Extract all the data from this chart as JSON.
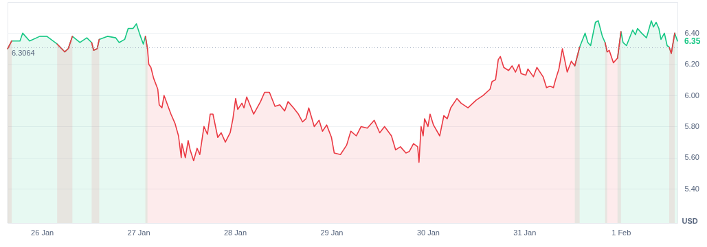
{
  "chart_data": {
    "type": "area",
    "ylabel": "USD",
    "xlim": [
      "--01-25T15:26",
      "--02-01T14:03"
    ],
    "xticks": [
      {
        "value": "--01-26",
        "label": "26 Jan"
      },
      {
        "value": "--01-27",
        "label": "27 Jan"
      },
      {
        "value": "--01-28",
        "label": "28 Jan"
      },
      {
        "value": "--01-29",
        "label": "29 Jan"
      },
      {
        "value": "--01-30",
        "label": "30 Jan"
      },
      {
        "value": "--01-31",
        "label": "31 Jan"
      },
      {
        "value": "--02-01",
        "label": "1 Feb"
      }
    ],
    "ylim": [
      5.18,
      6.6
    ],
    "yticks": [
      {
        "value": 5.4,
        "label": "5.40"
      },
      {
        "value": 5.6,
        "label": "5.60"
      },
      {
        "value": 5.8,
        "label": "5.80"
      },
      {
        "value": 6.0,
        "label": "6.00"
      },
      {
        "value": 6.2,
        "label": "6.20"
      },
      {
        "value": 6.4,
        "label": "6.40"
      }
    ],
    "grid": "y",
    "ref_lines": [
      {
        "axis": "y",
        "value": 6.3064,
        "label": "6.3064",
        "color": "#a6b0c3",
        "line_style": "dotted"
      }
    ],
    "annotations": [
      {
        "text": "6.35",
        "x": "--02-01T14:03",
        "y": 6.35
      }
    ],
    "series": [
      {
        "color": "#16c784",
        "x": [
          "--01-25T15:26",
          "--01-25T16:28",
          "--01-25T18:31",
          "--01-25T19:12",
          "--01-25T20:55",
          "--01-25T23:29",
          "--01-26T01:12",
          "--01-26T03:46",
          "--01-26T05:39",
          "--01-26T06:31",
          "--01-26T07:33",
          "--01-26T09:26",
          "--01-26T11:09",
          "--01-26T12:21",
          "--01-26T12:51",
          "--01-26T13:43",
          "--01-26T14:14",
          "--01-26T16:17",
          "--01-26T18:21",
          "--01-26T19:12",
          "--01-26T20:34",
          "--01-26T21:26",
          "--01-26T22:38",
          "--01-26T23:29",
          "--01-27T00:21",
          "--01-27T01:12",
          "--01-27T01:43",
          "--01-27T02:14"
        ],
        "values": [
          6.3,
          6.35,
          6.35,
          6.4,
          6.35,
          6.38,
          6.38,
          6.33,
          6.28,
          6.3,
          6.38,
          6.34,
          6.37,
          6.34,
          6.29,
          6.3,
          6.36,
          6.38,
          6.37,
          6.34,
          6.36,
          6.43,
          6.43,
          6.46,
          6.39,
          6.33,
          6.38,
          6.3
        ]
      },
      {
        "color": "#16c784",
        "x": [
          "--01-31T12:31",
          "--01-31T13:43",
          "--01-31T15:05",
          "--01-31T15:46",
          "--01-31T16:27",
          "--01-31T17:39",
          "--01-31T18:21",
          "--01-31T19:22",
          "--01-31T20:03",
          "--01-31T20:34"
        ],
        "values": [
          6.19,
          6.31,
          6.4,
          6.34,
          6.32,
          6.47,
          6.48,
          6.38,
          6.34,
          6.28
        ]
      },
      {
        "color": "#16c784",
        "x": [
          "--01-31T23:09",
          "--02-01T00:00",
          "--02-01T00:31",
          "--02-01T01:22",
          "--02-01T02:55",
          "--02-01T03:36",
          "--02-01T04:07",
          "--02-01T05:09",
          "--02-01T06:21",
          "--02-01T07:33",
          "--02-01T08:04",
          "--02-01T08:45",
          "--02-01T09:26",
          "--02-01T09:57",
          "--02-01T10:48",
          "--02-01T11:29",
          "--02-01T12:00",
          "--02-01T12:31",
          "--02-01T13:22",
          "--02-01T14:03"
        ],
        "values": [
          6.24,
          6.41,
          6.34,
          6.32,
          6.42,
          6.39,
          6.43,
          6.4,
          6.37,
          6.48,
          6.44,
          6.47,
          6.43,
          6.36,
          6.4,
          6.32,
          6.31,
          6.27,
          6.4,
          6.35
        ]
      },
      {
        "color": "#ea3943",
        "x": [
          "--01-25T15:26",
          "--01-25T16:28"
        ],
        "values": [
          6.3,
          6.35
        ]
      },
      {
        "color": "#ea3943",
        "x": [
          "--01-26T03:46",
          "--01-26T05:39",
          "--01-26T06:31",
          "--01-26T07:33"
        ],
        "values": [
          6.33,
          6.28,
          6.3,
          6.38
        ]
      },
      {
        "color": "#ea3943",
        "x": [
          "--01-26T12:21",
          "--01-26T12:51",
          "--01-26T13:43",
          "--01-26T14:14"
        ],
        "values": [
          6.34,
          6.29,
          6.3,
          6.36
        ]
      },
      {
        "color": "#ea3943",
        "x": [
          "--01-27T01:43",
          "--01-27T02:14",
          "--01-27T02:34",
          "--01-27T03:05",
          "--01-27T03:46",
          "--01-27T04:48",
          "--01-27T05:09",
          "--01-27T05:50",
          "--01-27T06:21",
          "--01-27T08:04",
          "--01-27T09:05",
          "--01-27T09:57",
          "--01-27T10:38",
          "--01-27T10:48",
          "--01-27T11:39",
          "--01-27T12:21",
          "--01-27T12:51",
          "--01-27T13:43",
          "--01-27T14:34",
          "--01-27T15:15",
          "--01-27T16:17",
          "--01-27T17:09",
          "--01-27T17:50",
          "--01-27T18:31",
          "--01-27T19:43",
          "--01-27T20:34",
          "--01-27T21:36",
          "--01-27T22:48",
          "--01-27T23:29",
          "--01-28T00:10",
          "--01-28T00:41",
          "--01-28T01:43",
          "--01-28T02:14",
          "--01-28T02:55",
          "--01-28T04:38",
          "--01-28T06:21",
          "--01-28T07:22",
          "--01-28T08:34",
          "--01-28T09:57",
          "--01-28T11:09",
          "--01-28T12:21",
          "--01-28T13:12",
          "--01-28T14:34",
          "--01-28T15:46",
          "--01-28T16:48",
          "--01-28T17:39",
          "--01-28T18:21",
          "--01-28T19:43",
          "--01-28T20:55",
          "--01-28T21:46",
          "--01-28T22:48",
          "--01-29T00:00",
          "--01-29T00:41",
          "--01-29T02:14",
          "--01-29T03:46",
          "--01-29T04:48",
          "--01-29T06:10",
          "--01-29T07:22",
          "--01-29T08:55",
          "--01-29T10:38",
          "--01-29T12:00",
          "--01-29T13:12",
          "--01-29T14:55",
          "--01-29T15:57",
          "--01-29T17:09",
          "--01-29T18:31",
          "--01-29T19:22",
          "--01-29T20:24",
          "--01-29T21:26",
          "--01-29T21:46",
          "--01-29T22:17",
          "--01-29T22:48",
          "--01-29T23:09",
          "--01-30T00:00",
          "--01-30T00:31",
          "--01-30T01:22",
          "--01-30T02:55",
          "--01-30T03:57",
          "--01-30T04:48",
          "--01-30T05:39",
          "--01-30T07:12",
          "--01-30T08:14",
          "--01-30T09:57",
          "--01-30T12:00",
          "--01-30T13:43",
          "--01-30T15:26",
          "--01-30T15:57",
          "--01-30T16:48",
          "--01-30T17:29",
          "--01-30T18:00",
          "--01-30T18:51",
          "--01-30T20:03",
          "--01-30T20:55",
          "--01-30T21:46",
          "--01-30T22:38",
          "--01-30T23:09",
          "--01-31T00:21",
          "--01-31T00:51",
          "--01-31T02:14",
          "--01-31T03:05",
          "--01-31T04:38",
          "--01-31T05:29",
          "--01-31T06:21",
          "--01-31T07:12",
          "--01-31T07:43",
          "--01-31T08:34",
          "--01-31T09:26",
          "--01-31T10:38",
          "--01-31T11:39",
          "--01-31T12:31",
          "--01-31T13:43"
        ],
        "values": [
          6.38,
          6.3,
          6.2,
          6.18,
          6.11,
          6.04,
          5.94,
          5.92,
          6.0,
          5.88,
          5.82,
          5.74,
          5.6,
          5.69,
          5.6,
          5.71,
          5.65,
          5.58,
          5.66,
          5.62,
          5.8,
          5.75,
          5.88,
          5.88,
          5.73,
          5.76,
          5.7,
          5.76,
          5.85,
          5.98,
          5.91,
          5.95,
          5.92,
          5.99,
          5.88,
          5.96,
          6.02,
          6.02,
          5.93,
          5.94,
          5.9,
          5.96,
          5.92,
          5.88,
          5.83,
          5.85,
          5.92,
          5.8,
          5.84,
          5.77,
          5.81,
          5.73,
          5.63,
          5.62,
          5.68,
          5.77,
          5.74,
          5.8,
          5.79,
          5.84,
          5.76,
          5.8,
          5.74,
          5.65,
          5.67,
          5.63,
          5.64,
          5.69,
          5.67,
          5.57,
          5.8,
          5.74,
          5.85,
          5.8,
          5.88,
          5.81,
          5.74,
          5.87,
          5.85,
          5.92,
          5.98,
          5.95,
          5.92,
          5.97,
          6.0,
          6.04,
          6.09,
          6.1,
          6.23,
          6.25,
          6.18,
          6.16,
          6.19,
          6.15,
          6.2,
          6.14,
          6.13,
          6.17,
          6.12,
          6.18,
          6.12,
          6.05,
          6.06,
          6.05,
          6.1,
          6.17,
          6.3,
          6.15,
          6.22,
          6.19,
          6.31
        ]
      },
      {
        "color": "#ea3943",
        "x": [
          "--01-31T20:03",
          "--01-31T20:34",
          "--01-31T21:05",
          "--01-31T22:07",
          "--01-31T23:09",
          "--02-01T00:00"
        ],
        "values": [
          6.34,
          6.28,
          6.29,
          6.21,
          6.24,
          6.41
        ]
      },
      {
        "color": "#ea3943",
        "x": [
          "--02-01T12:00",
          "--02-01T12:31",
          "--02-01T13:22"
        ],
        "values": [
          6.31,
          6.27,
          6.4
        ]
      }
    ]
  }
}
